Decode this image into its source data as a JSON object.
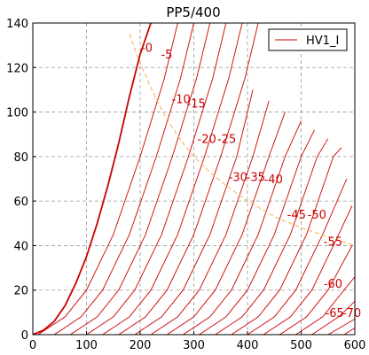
{
  "chart_data": {
    "type": "line",
    "title": "PP5/400",
    "xlabel": "",
    "ylabel": "",
    "xlim": [
      0,
      600
    ],
    "ylim": [
      0,
      140
    ],
    "xticks": [
      0,
      100,
      200,
      300,
      400,
      500,
      600
    ],
    "yticks": [
      0,
      20,
      40,
      60,
      80,
      100,
      120,
      140
    ],
    "grid": true,
    "legend": {
      "placement": "top-right",
      "entries": [
        "HV1_I"
      ]
    },
    "colors": {
      "curve": "#cc0000",
      "dissipation": "#f5b04a",
      "grid": "#999999"
    },
    "bias_labels": [
      "-0",
      "-5",
      "-10",
      "-15",
      "-20",
      "-25",
      "-30",
      "-35",
      "-40",
      "-45",
      "-50",
      "-55",
      "-60",
      "-65",
      "-70"
    ],
    "series": [
      {
        "offset": 0,
        "points": [
          [
            0,
            0
          ],
          [
            20,
            2
          ],
          [
            40,
            6
          ],
          [
            60,
            13
          ],
          [
            80,
            23
          ],
          [
            100,
            35
          ],
          [
            120,
            50
          ],
          [
            140,
            67
          ],
          [
            160,
            86
          ],
          [
            180,
            107
          ],
          [
            200,
            126
          ],
          [
            220,
            140
          ]
        ]
      },
      {
        "offset": 10,
        "points": [
          [
            10,
            0
          ],
          [
            60,
            8
          ],
          [
            100,
            20
          ],
          [
            150,
            45
          ],
          [
            200,
            80
          ],
          [
            245,
            115
          ],
          [
            270,
            140
          ]
        ]
      },
      {
        "offset": 40,
        "points": [
          [
            40,
            0
          ],
          [
            90,
            8
          ],
          [
            130,
            20
          ],
          [
            180,
            45
          ],
          [
            230,
            80
          ],
          [
            275,
            115
          ],
          [
            300,
            140
          ]
        ]
      },
      {
        "offset": 70,
        "points": [
          [
            70,
            0
          ],
          [
            120,
            8
          ],
          [
            160,
            20
          ],
          [
            210,
            45
          ],
          [
            260,
            80
          ],
          [
            305,
            115
          ],
          [
            330,
            140
          ]
        ]
      },
      {
        "offset": 100,
        "points": [
          [
            100,
            0
          ],
          [
            150,
            8
          ],
          [
            190,
            20
          ],
          [
            240,
            45
          ],
          [
            290,
            80
          ],
          [
            335,
            115
          ],
          [
            360,
            140
          ]
        ]
      },
      {
        "offset": 130,
        "points": [
          [
            130,
            0
          ],
          [
            180,
            8
          ],
          [
            220,
            20
          ],
          [
            270,
            45
          ],
          [
            320,
            80
          ],
          [
            365,
            115
          ],
          [
            390,
            140
          ]
        ]
      },
      {
        "offset": 160,
        "points": [
          [
            160,
            0
          ],
          [
            210,
            8
          ],
          [
            250,
            20
          ],
          [
            300,
            45
          ],
          [
            350,
            80
          ],
          [
            395,
            115
          ],
          [
            420,
            140
          ]
        ]
      },
      {
        "offset": 190,
        "points": [
          [
            190,
            0
          ],
          [
            240,
            8
          ],
          [
            280,
            20
          ],
          [
            330,
            45
          ],
          [
            380,
            80
          ],
          [
            410,
            110
          ]
        ]
      },
      {
        "offset": 220,
        "points": [
          [
            220,
            0
          ],
          [
            270,
            8
          ],
          [
            310,
            20
          ],
          [
            360,
            45
          ],
          [
            410,
            80
          ],
          [
            440,
            105
          ]
        ]
      },
      {
        "offset": 250,
        "points": [
          [
            250,
            0
          ],
          [
            300,
            8
          ],
          [
            340,
            20
          ],
          [
            390,
            45
          ],
          [
            440,
            80
          ],
          [
            470,
            100
          ]
        ]
      },
      {
        "offset": 280,
        "points": [
          [
            280,
            0
          ],
          [
            330,
            8
          ],
          [
            370,
            20
          ],
          [
            420,
            45
          ],
          [
            470,
            80
          ],
          [
            500,
            96
          ]
        ]
      },
      {
        "offset": 310,
        "points": [
          [
            310,
            0
          ],
          [
            360,
            8
          ],
          [
            400,
            20
          ],
          [
            450,
            45
          ],
          [
            500,
            80
          ],
          [
            525,
            92
          ]
        ]
      },
      {
        "offset": 340,
        "points": [
          [
            340,
            0
          ],
          [
            390,
            8
          ],
          [
            430,
            20
          ],
          [
            480,
            45
          ],
          [
            530,
            80
          ],
          [
            550,
            88
          ]
        ]
      },
      {
        "offset": 370,
        "points": [
          [
            370,
            0
          ],
          [
            420,
            8
          ],
          [
            460,
            20
          ],
          [
            510,
            45
          ],
          [
            560,
            80
          ],
          [
            575,
            84
          ]
        ]
      },
      {
        "offset": 400,
        "points": [
          [
            400,
            0
          ],
          [
            450,
            8
          ],
          [
            490,
            20
          ],
          [
            540,
            45
          ],
          [
            585,
            70
          ]
        ]
      },
      {
        "offset": 430,
        "points": [
          [
            430,
            0
          ],
          [
            480,
            8
          ],
          [
            520,
            20
          ],
          [
            570,
            45
          ],
          [
            595,
            58
          ]
        ]
      },
      {
        "offset": 460,
        "points": [
          [
            460,
            0
          ],
          [
            510,
            8
          ],
          [
            550,
            20
          ],
          [
            595,
            40
          ]
        ]
      },
      {
        "offset": 490,
        "points": [
          [
            490,
            0
          ],
          [
            540,
            8
          ],
          [
            580,
            20
          ],
          [
            600,
            26
          ]
        ]
      },
      {
        "offset": 520,
        "points": [
          [
            520,
            0
          ],
          [
            570,
            8
          ],
          [
            600,
            15
          ]
        ]
      },
      {
        "offset": 550,
        "points": [
          [
            550,
            0
          ],
          [
            600,
            7
          ]
        ]
      },
      {
        "offset": 580,
        "points": [
          [
            580,
            0
          ],
          [
            600,
            3
          ]
        ]
      }
    ],
    "dissipation_curve": [
      [
        180,
        135
      ],
      [
        200,
        122
      ],
      [
        220,
        111
      ],
      [
        240,
        101
      ],
      [
        260,
        93
      ],
      [
        280,
        86
      ],
      [
        300,
        80
      ],
      [
        330,
        73
      ],
      [
        360,
        67
      ],
      [
        400,
        60
      ],
      [
        450,
        53
      ],
      [
        500,
        48
      ],
      [
        550,
        44
      ],
      [
        600,
        40
      ]
    ]
  }
}
